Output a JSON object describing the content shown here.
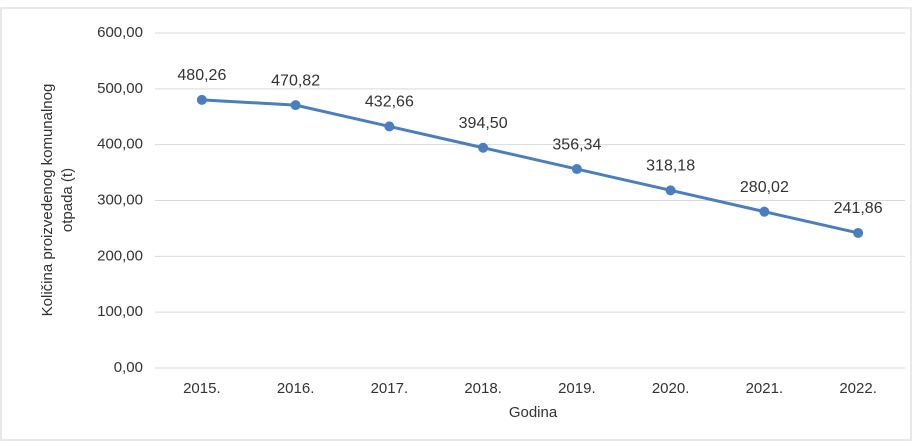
{
  "chart_data": {
    "type": "line",
    "x_label": "Godina",
    "y_label": [
      "Količina proizvedenog komunalnog",
      "otpada (t)"
    ],
    "categories": [
      "2015.",
      "2016.",
      "2017.",
      "2018.",
      "2019.",
      "2020.",
      "2021.",
      "2022."
    ],
    "series": [
      {
        "color": "#4a7ebf",
        "values": [
          480.26,
          470.82,
          432.66,
          394.5,
          356.34,
          318.18,
          280.02,
          241.86
        ],
        "value_labels": [
          "480,26",
          "470,82",
          "432,66",
          "394,50",
          "356,34",
          "318,18",
          "280,02",
          "241,86"
        ]
      }
    ],
    "ylim": [
      0,
      600
    ],
    "yticks": [
      {
        "value": 0,
        "label": "0,00"
      },
      {
        "value": 100,
        "label": "100,00"
      },
      {
        "value": 200,
        "label": "200,00"
      },
      {
        "value": 300,
        "label": "300,00"
      },
      {
        "value": 400,
        "label": "400,00"
      },
      {
        "value": 500,
        "label": "500,00"
      },
      {
        "value": 600,
        "label": "600,00"
      }
    ],
    "grid": true
  }
}
